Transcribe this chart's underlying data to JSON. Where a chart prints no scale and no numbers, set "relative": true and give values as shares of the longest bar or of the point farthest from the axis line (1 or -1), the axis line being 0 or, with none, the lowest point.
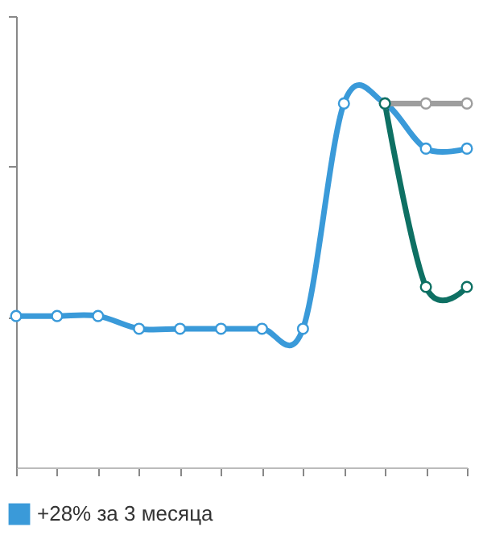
{
  "chart_data": {
    "type": "line",
    "relative": true,
    "categories": [
      null,
      null,
      null,
      null,
      null,
      null,
      null,
      null,
      null,
      null,
      null,
      null
    ],
    "series": [
      {
        "name": "+28% за 3 месяца",
        "color": "#3a9ad9",
        "values": [
          0.416,
          0.416,
          0.416,
          0.381,
          0.381,
          0.381,
          0.381,
          0.381,
          1,
          1,
          0.876,
          0.876
        ]
      },
      {
        "color": "#9e9e9e",
        "values": [
          null,
          null,
          null,
          null,
          null,
          null,
          null,
          null,
          null,
          1,
          1,
          1
        ]
      },
      {
        "color": "#0e7063",
        "values": [
          null,
          null,
          null,
          null,
          null,
          null,
          null,
          null,
          null,
          1,
          0.496,
          0.496
        ]
      }
    ],
    "marker": "circle",
    "legend": "bottom left"
  }
}
